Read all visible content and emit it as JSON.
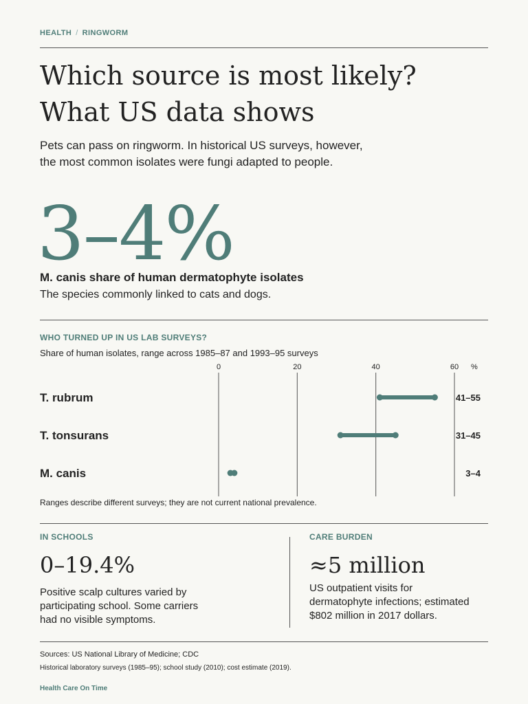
{
  "header": {
    "kicker_1": "HEALTH",
    "kicker_sep": "/",
    "kicker_2": "RINGWORM",
    "title_line1": "Which source is most likely?",
    "title_line2": "What US data shows",
    "deck_line1": "Pets can pass on ringworm. In historical US surveys, however,",
    "deck_line2": "the most common isolates were fungi adapted to people."
  },
  "hero": {
    "value": "3–4%",
    "label": "M. canis share of human dermatophyte isolates",
    "sub": "The species commonly linked to cats and dogs."
  },
  "chart_section": {
    "title": "WHO TURNED UP IN US LAB SURVEYS?",
    "subtitle": "Share of human isolates, range across 1985–87 and 1993–95 surveys",
    "note": "Ranges describe different surveys; they are not current national prevalence."
  },
  "chart_data": {
    "type": "range-dot",
    "x_ticks": [
      0,
      20,
      40,
      60
    ],
    "x_unit": "%",
    "xlim": [
      0,
      60
    ],
    "accent": "#4f7d78",
    "rows": [
      {
        "label": "T. rubrum",
        "low": 41,
        "high": 55,
        "range_label": "41–55"
      },
      {
        "label": "T. tonsurans",
        "low": 31,
        "high": 45,
        "range_label": "31–45"
      },
      {
        "label": "M. canis",
        "low": 3,
        "high": 4,
        "range_label": "3–4"
      }
    ]
  },
  "schools": {
    "title": "IN SCHOOLS",
    "stat": "0–19.4%",
    "desc_line1": "Positive scalp cultures varied by",
    "desc_line2": "participating school. Some carriers",
    "desc_line3": "had no visible symptoms."
  },
  "burden": {
    "title": "CARE BURDEN",
    "stat": "≈5 million",
    "desc_line1": "US outpatient visits for",
    "desc_line2": "dermatophyte infections; estimated",
    "desc_line3": "$802 million in 2017 dollars."
  },
  "footer": {
    "sources": "Sources: US National Library of Medicine; CDC",
    "detail": "Historical laboratory surveys (1985–95); school study (2010); cost estimate (2019).",
    "brand": "Health Care On Time"
  }
}
